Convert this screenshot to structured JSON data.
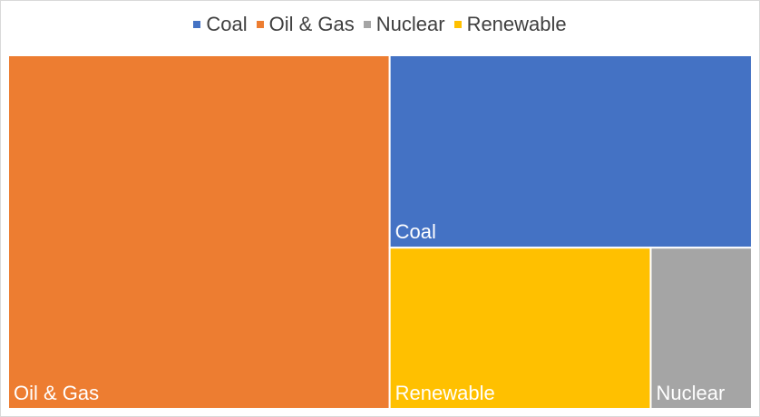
{
  "chart_data": {
    "type": "treemap",
    "title": "",
    "legend_position": "top",
    "series": [
      {
        "name": "Oil & Gas",
        "value": 51.3,
        "color": "#ED7D31"
      },
      {
        "name": "Coal",
        "value": 26.5,
        "color": "#4472C4"
      },
      {
        "name": "Renewable",
        "value": 16.0,
        "color": "#FFC000"
      },
      {
        "name": "Nuclear",
        "value": 6.2,
        "color": "#A5A5A5"
      }
    ],
    "legend_order": [
      "Coal",
      "Oil & Gas",
      "Nuclear",
      "Renewable"
    ]
  }
}
